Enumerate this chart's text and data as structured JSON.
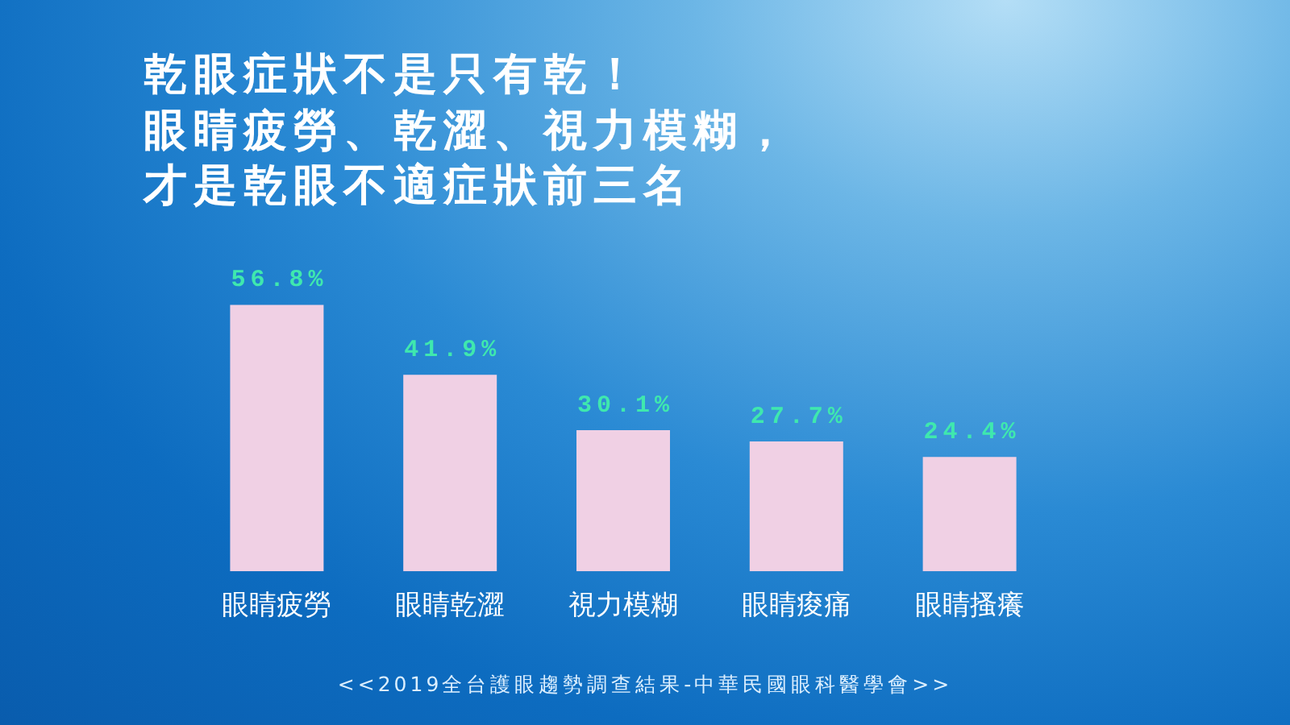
{
  "chart_data": {
    "type": "bar",
    "title": "乾眼症狀不是只有乾！",
    "subtitle": "眼睛疲勞、乾澀、視力模糊，才是乾眼不適症狀前三名",
    "categories": [
      "眼睛疲勞",
      "眼睛乾澀",
      "視力模糊",
      "眼睛痠痛",
      "眼睛搔癢"
    ],
    "values": [
      56.8,
      41.9,
      30.1,
      27.7,
      24.4
    ],
    "value_labels": [
      "56.8%",
      "41.9%",
      "30.1%",
      "27.7%",
      "24.4%"
    ],
    "color": "#f0d0e4",
    "annotations": [
      "<<2019全台護眼趨勢調查結果-中華民國眼科醫學會>>"
    ]
  }
}
